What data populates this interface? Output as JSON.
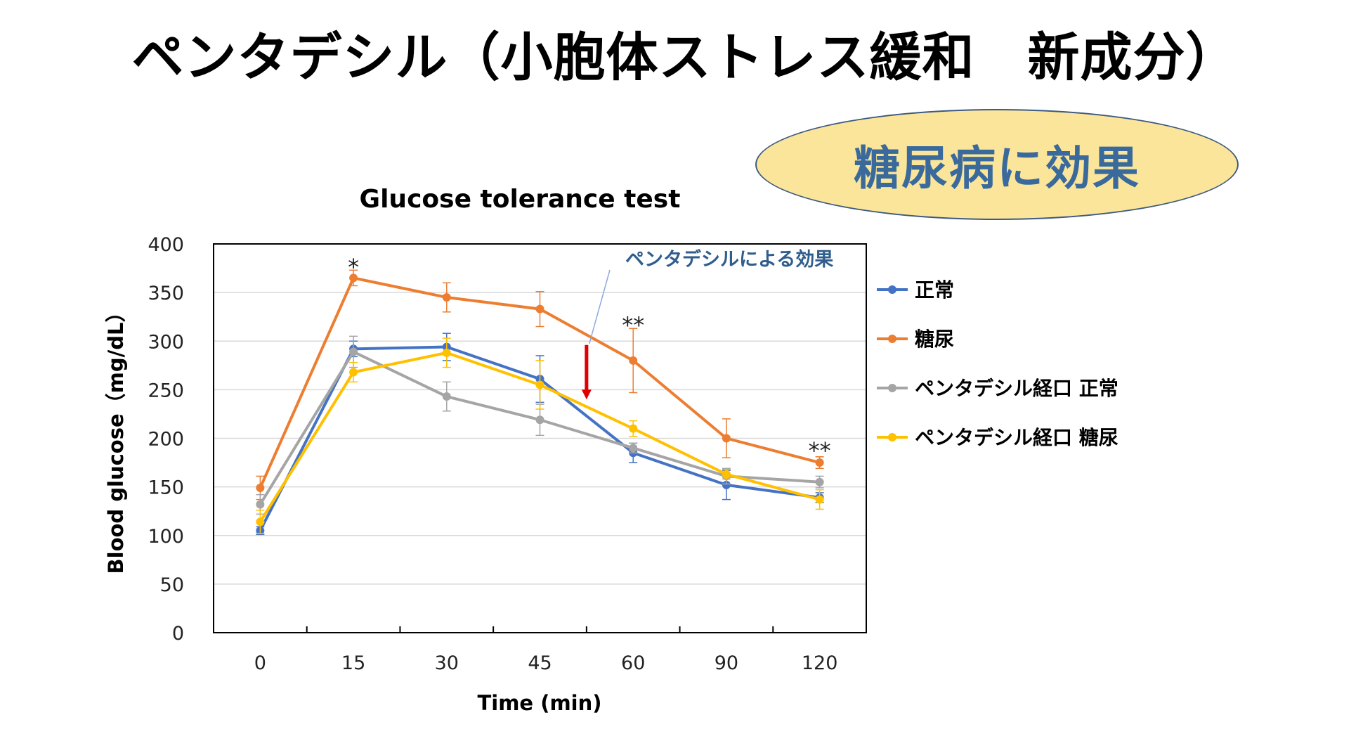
{
  "slide": {
    "title": "ペンタデシル（小胞体ストレス緩和　新成分）",
    "badge": "糖尿病に効果"
  },
  "colors": {
    "normal": "#4472c4",
    "diabetes": "#ed7d31",
    "penta_normal": "#a5a5a5",
    "penta_diabetes": "#ffc000",
    "annotation": "#2f5d8c",
    "arrow": "#e00000",
    "badge_fill": "#fae59a"
  },
  "chart_data": {
    "type": "line",
    "title": "Glucose tolerance test",
    "xlabel": "Time (min)",
    "ylabel": "Blood glucose（mg/dL）",
    "categories": [
      "0",
      "15",
      "30",
      "45",
      "60",
      "90",
      "120"
    ],
    "ylim": [
      0,
      400
    ],
    "yticks": [
      0,
      50,
      100,
      150,
      200,
      250,
      300,
      350,
      400
    ],
    "grid": true,
    "legend_position": "right",
    "series": [
      {
        "name": "正常",
        "color_key": "normal",
        "values": [
          105,
          292,
          294,
          261,
          185,
          152,
          139
        ],
        "errors": [
          4,
          8,
          14,
          24,
          10,
          15,
          5
        ]
      },
      {
        "name": "糖尿",
        "color_key": "diabetes",
        "values": [
          149,
          365,
          345,
          333,
          280,
          200,
          175
        ],
        "errors": [
          12,
          8,
          15,
          18,
          33,
          20,
          6
        ]
      },
      {
        "name": "ペンタデシル経口 正常",
        "color_key": "penta_normal",
        "values": [
          132,
          289,
          243,
          219,
          190,
          161,
          155
        ],
        "errors": [
          10,
          16,
          15,
          16,
          5,
          8,
          6
        ]
      },
      {
        "name": "ペンタデシル経口 糖尿",
        "color_key": "penta_diabetes",
        "values": [
          114,
          268,
          288,
          255,
          210,
          163,
          137
        ],
        "errors": [
          12,
          10,
          15,
          25,
          8,
          5,
          10
        ]
      }
    ],
    "significance": [
      {
        "category": "15",
        "text": "*",
        "y": 377
      },
      {
        "category": "60",
        "text": "**",
        "y": 317
      },
      {
        "category": "120",
        "text": "**",
        "y": 188
      }
    ],
    "annotation": {
      "text": "ペンタデシルによる効果",
      "arrow_category_between": [
        "45",
        "60"
      ],
      "arrow_from": 296,
      "arrow_to": 240
    }
  }
}
